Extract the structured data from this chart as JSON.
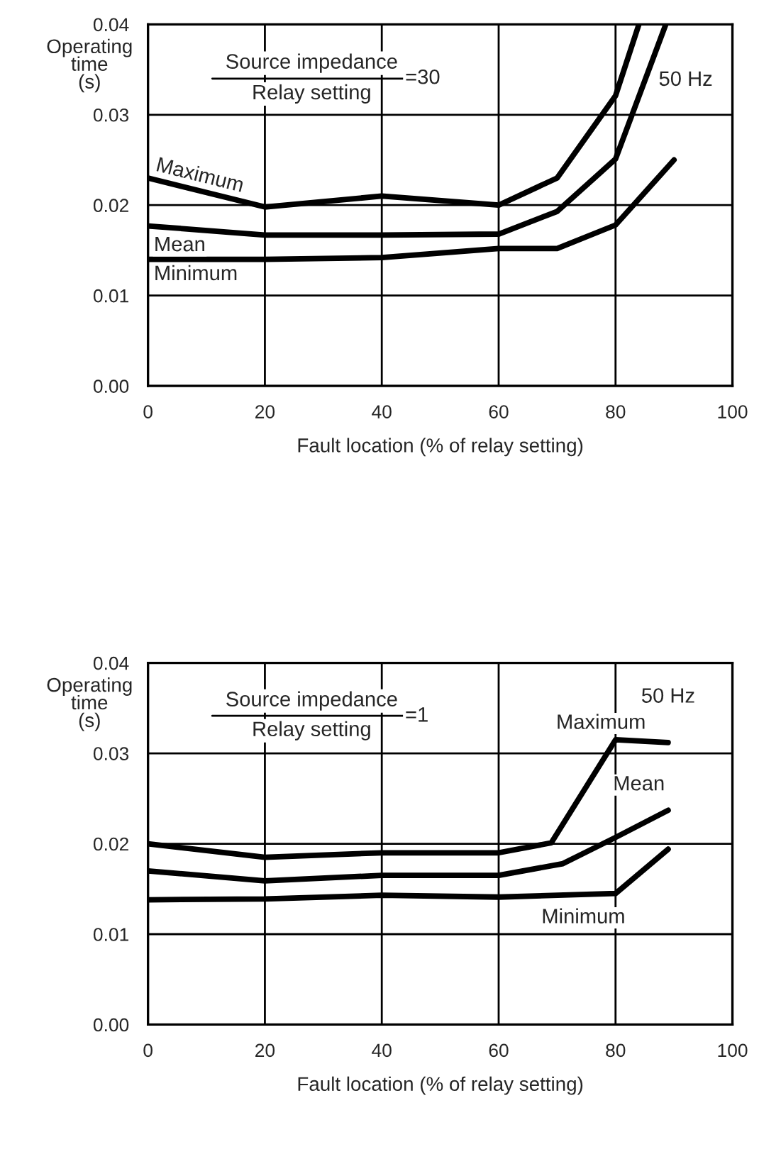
{
  "chart_data": [
    {
      "type": "line",
      "xlabel": "Fault location (% of relay setting)",
      "ylabel": "Operating\ntime\n(s)",
      "xlim": [
        0,
        100
      ],
      "xticks": [
        0,
        20,
        40,
        60,
        80,
        100
      ],
      "ylim": [
        0,
        0.04
      ],
      "yticks": [
        {
          "value": 0,
          "label": "0.00"
        },
        0.01,
        0.02,
        0.03,
        0.04
      ],
      "grid": true,
      "legend": false,
      "marker": "none",
      "line_style": "solid",
      "annotations": [
        "Source impedance",
        "Relay setting",
        "=30",
        "50 Hz"
      ],
      "series": [
        {
          "name": "Maximum",
          "color": "#000000",
          "x": [
            0,
            20,
            40,
            60,
            70,
            80,
            84
          ],
          "values": [
            0.023,
            0.0198,
            0.021,
            0.02,
            0.023,
            0.0321,
            0.04
          ]
        },
        {
          "name": "Mean",
          "color": "#000000",
          "x": [
            0,
            20,
            40,
            60,
            70,
            80,
            88.6
          ],
          "values": [
            0.0177,
            0.0167,
            0.0167,
            0.0168,
            0.0193,
            0.0251,
            0.04
          ]
        },
        {
          "name": "Minimum",
          "color": "#000000",
          "x": [
            0,
            20,
            40,
            60,
            70,
            80,
            90
          ],
          "values": [
            0.014,
            0.014,
            0.0142,
            0.0152,
            0.0152,
            0.0178,
            0.025
          ]
        }
      ]
    },
    {
      "type": "line",
      "xlabel": "Fault location (% of relay setting)",
      "ylabel": "Operating\ntime\n(s)",
      "xlim": [
        0,
        100
      ],
      "xticks": [
        0,
        20,
        40,
        60,
        80,
        100
      ],
      "ylim": [
        0,
        0.04
      ],
      "yticks": [
        {
          "value": 0,
          "label": "0.00"
        },
        0.01,
        0.02,
        0.03,
        0.04
      ],
      "grid": true,
      "legend": false,
      "marker": "none",
      "line_style": "solid",
      "annotations": [
        "Source impedance",
        "Relay setting",
        "=1",
        "50 Hz"
      ],
      "series": [
        {
          "name": "Maximum",
          "color": "#000000",
          "x": [
            0,
            20,
            40,
            60,
            69,
            80,
            89
          ],
          "values": [
            0.02,
            0.0185,
            0.019,
            0.019,
            0.0201,
            0.0315,
            0.0312
          ]
        },
        {
          "name": "Mean",
          "color": "#000000",
          "x": [
            0,
            20,
            40,
            60,
            71,
            80,
            89
          ],
          "values": [
            0.017,
            0.0159,
            0.0165,
            0.0165,
            0.0178,
            0.0207,
            0.0237
          ]
        },
        {
          "name": "Minimum",
          "color": "#000000",
          "x": [
            0,
            20,
            40,
            60,
            80,
            89
          ],
          "values": [
            0.0138,
            0.0139,
            0.0143,
            0.0141,
            0.0145,
            0.0194
          ]
        }
      ]
    }
  ]
}
